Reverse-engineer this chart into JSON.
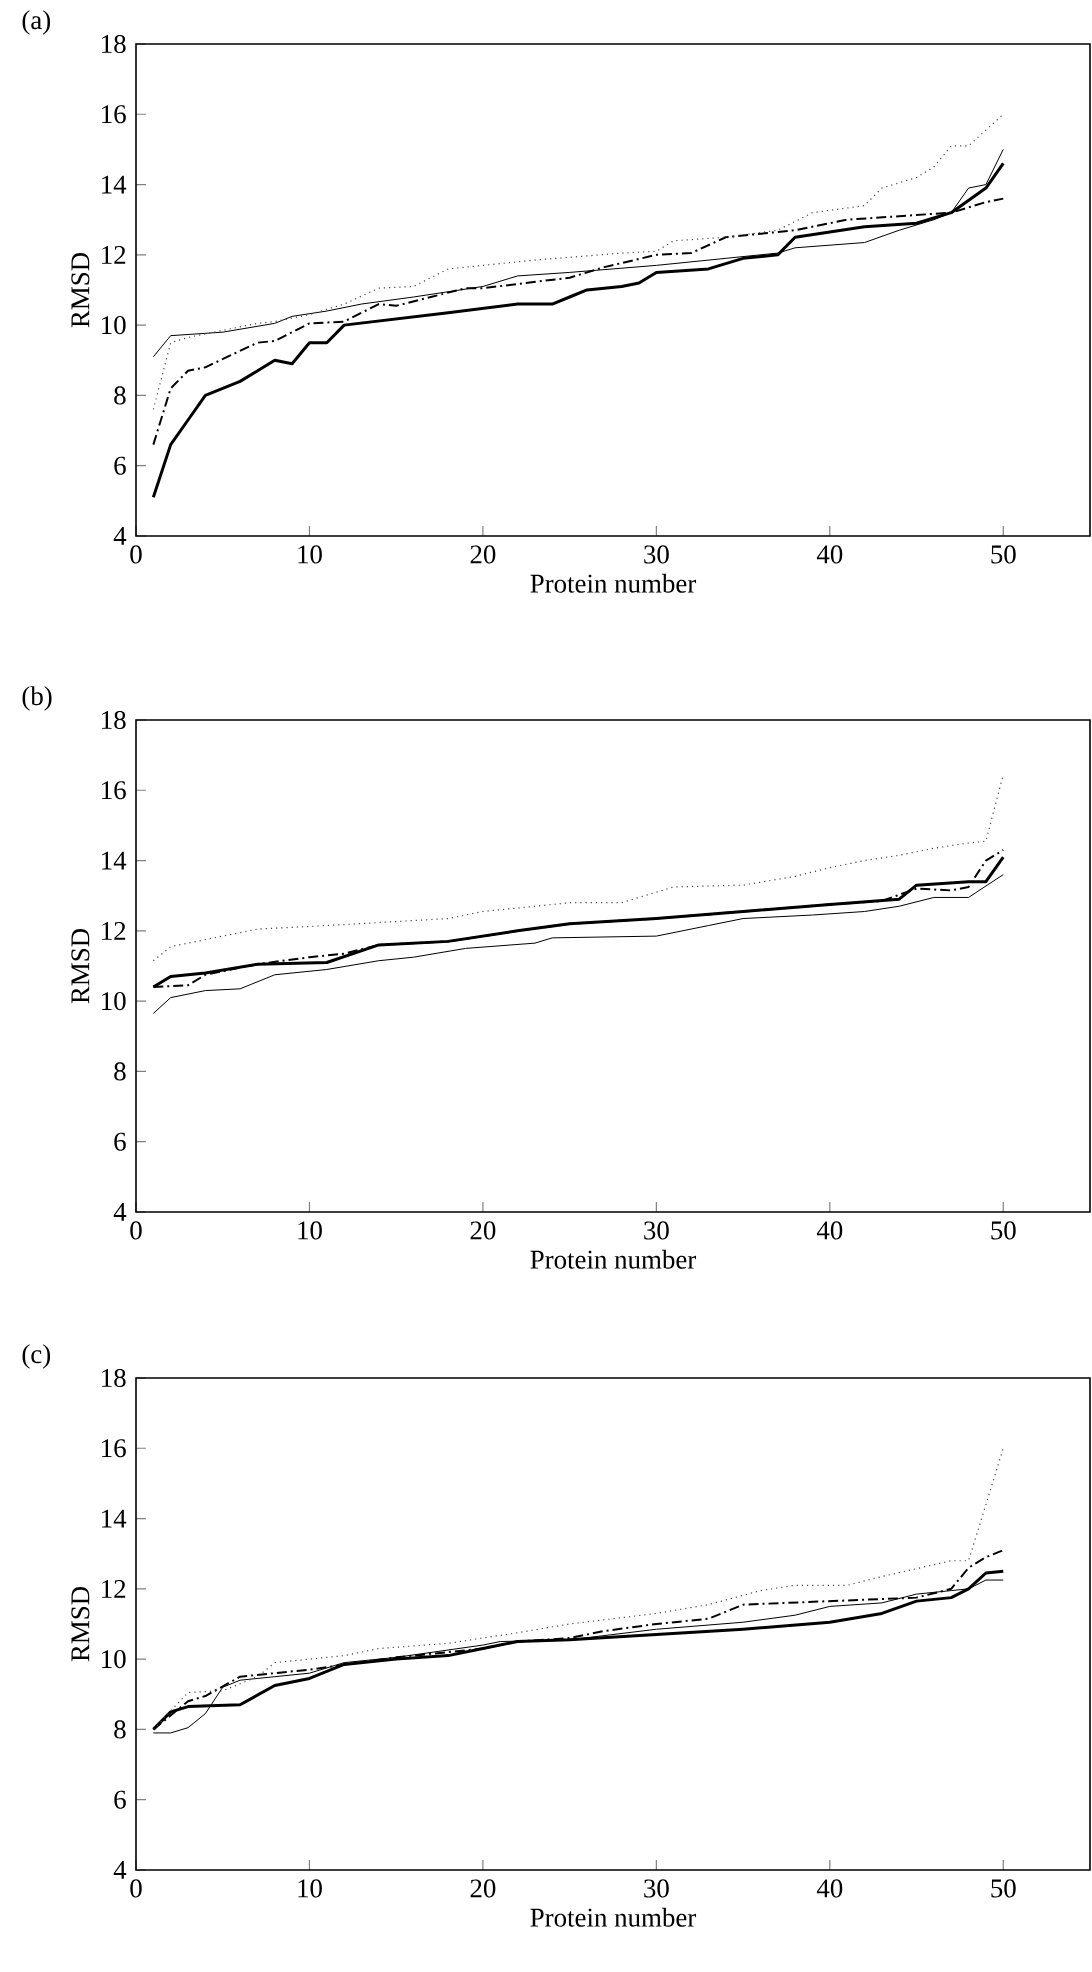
{
  "chart_data": [
    {
      "type": "line",
      "title": "(a)",
      "xlabel": "Protein number",
      "ylabel": "RMSD",
      "xlim": [
        0,
        55
      ],
      "ylim": [
        4,
        18
      ],
      "xticks": [
        0,
        10,
        20,
        30,
        40,
        50
      ],
      "yticks": [
        4,
        6,
        8,
        10,
        12,
        14,
        16,
        18
      ],
      "series": [
        {
          "color": "#000000",
          "line_style": "solid",
          "x": [
            1,
            2,
            3,
            4,
            6,
            8,
            9,
            10,
            11,
            12,
            18,
            22,
            24,
            25,
            26,
            28,
            29,
            30,
            33,
            35,
            37,
            38,
            42,
            45,
            47,
            49,
            50
          ],
          "values": [
            5.1,
            6.6,
            7.3,
            8.0,
            8.4,
            9.0,
            8.9,
            9.5,
            9.5,
            10.0,
            10.35,
            10.6,
            10.6,
            10.8,
            11.0,
            11.1,
            11.2,
            11.5,
            11.6,
            11.9,
            12.0,
            12.5,
            12.8,
            12.9,
            13.2,
            13.9,
            14.6
          ]
        },
        {
          "color": "#000000",
          "line_style": "solid",
          "x": [
            1,
            2,
            5,
            8,
            9,
            11,
            13,
            16,
            20,
            22,
            25,
            30,
            37,
            38,
            42,
            44,
            46,
            47,
            48,
            49,
            50
          ],
          "values": [
            9.1,
            9.7,
            9.8,
            10.05,
            10.25,
            10.4,
            10.6,
            10.8,
            11.1,
            11.4,
            11.5,
            11.7,
            12.05,
            12.2,
            12.35,
            12.7,
            13.0,
            13.2,
            13.9,
            14.0,
            15.0
          ]
        },
        {
          "color": "#000000",
          "line_style": "dashed",
          "x": [
            1,
            2,
            3,
            4,
            7,
            8,
            10,
            12,
            14,
            15,
            17,
            19,
            20,
            25,
            27,
            30,
            32,
            34,
            38,
            41,
            44,
            47,
            49,
            50
          ],
          "values": [
            6.6,
            8.2,
            8.7,
            8.8,
            9.5,
            9.55,
            10.05,
            10.1,
            10.6,
            10.55,
            10.8,
            11.05,
            11.05,
            11.35,
            11.65,
            12.0,
            12.05,
            12.5,
            12.7,
            13.0,
            13.1,
            13.2,
            13.5,
            13.6
          ]
        },
        {
          "color": "#444444",
          "line_style": "dotted",
          "x": [
            1,
            2,
            3,
            7,
            8,
            10,
            12,
            14,
            16,
            18,
            20,
            23,
            28,
            30,
            31,
            34,
            37,
            39,
            42,
            43,
            45,
            46,
            47,
            48,
            50
          ],
          "values": [
            7.6,
            9.5,
            9.65,
            10.05,
            10.1,
            10.3,
            10.6,
            11.05,
            11.1,
            11.6,
            11.7,
            11.85,
            12.05,
            12.1,
            12.4,
            12.5,
            12.7,
            13.2,
            13.4,
            13.9,
            14.2,
            14.5,
            15.1,
            15.1,
            16.0
          ]
        }
      ]
    },
    {
      "type": "line",
      "title": "(b)",
      "xlabel": "Protein number",
      "ylabel": "RMSD",
      "xlim": [
        0,
        55
      ],
      "ylim": [
        4,
        18
      ],
      "xticks": [
        0,
        10,
        20,
        30,
        40,
        50
      ],
      "yticks": [
        4,
        6,
        8,
        10,
        12,
        14,
        16,
        18
      ],
      "series": [
        {
          "color": "#000000",
          "line_style": "solid",
          "x": [
            1,
            2,
            4,
            7,
            11,
            14,
            18,
            22,
            25,
            30,
            35,
            40,
            44,
            45,
            48,
            49,
            50
          ],
          "values": [
            10.4,
            10.7,
            10.8,
            11.05,
            11.1,
            11.6,
            11.7,
            12.0,
            12.2,
            12.35,
            12.55,
            12.75,
            12.9,
            13.3,
            13.4,
            13.4,
            14.1
          ]
        },
        {
          "color": "#000000",
          "line_style": "solid",
          "x": [
            1,
            2,
            4,
            6,
            8,
            11,
            14,
            16,
            19,
            23,
            24,
            30,
            33,
            35,
            39,
            42,
            44,
            46,
            48,
            50
          ],
          "values": [
            9.65,
            10.1,
            10.3,
            10.35,
            10.75,
            10.9,
            11.15,
            11.25,
            11.5,
            11.65,
            11.8,
            11.85,
            12.15,
            12.35,
            12.45,
            12.55,
            12.7,
            12.95,
            12.95,
            13.6
          ]
        },
        {
          "color": "#000000",
          "line_style": "dashed",
          "x": [
            1,
            3,
            4,
            7,
            10,
            12,
            14,
            18,
            22,
            25,
            30,
            35,
            40,
            43,
            45,
            47,
            48,
            49,
            50
          ],
          "values": [
            10.4,
            10.45,
            10.75,
            11.05,
            11.25,
            11.35,
            11.6,
            11.7,
            12.0,
            12.2,
            12.35,
            12.55,
            12.75,
            12.85,
            13.2,
            13.15,
            13.25,
            14.0,
            14.3
          ]
        },
        {
          "color": "#444444",
          "line_style": "dotted",
          "x": [
            1,
            2,
            5,
            7,
            11,
            18,
            20,
            25,
            28,
            29,
            31,
            35,
            38,
            40,
            42,
            44,
            46,
            48,
            49,
            50
          ],
          "values": [
            11.15,
            11.55,
            11.85,
            12.05,
            12.15,
            12.35,
            12.55,
            12.8,
            12.8,
            12.95,
            13.25,
            13.3,
            13.55,
            13.8,
            14.0,
            14.15,
            14.35,
            14.5,
            14.55,
            16.45
          ]
        }
      ]
    },
    {
      "type": "line",
      "title": "(c)",
      "xlabel": "Protein number",
      "ylabel": "RMSD",
      "xlim": [
        0,
        55
      ],
      "ylim": [
        4,
        18
      ],
      "xticks": [
        0,
        10,
        20,
        30,
        40,
        50
      ],
      "yticks": [
        4,
        6,
        8,
        10,
        12,
        14,
        16,
        18
      ],
      "series": [
        {
          "color": "#000000",
          "line_style": "solid",
          "x": [
            1,
            2,
            3,
            6,
            8,
            10,
            12,
            15,
            18,
            20,
            22,
            25,
            30,
            35,
            40,
            43,
            45,
            47,
            48,
            49,
            50
          ],
          "values": [
            8.0,
            8.5,
            8.65,
            8.7,
            9.25,
            9.45,
            9.85,
            10.0,
            10.1,
            10.3,
            10.5,
            10.55,
            10.7,
            10.85,
            11.05,
            11.3,
            11.65,
            11.75,
            12.0,
            12.45,
            12.5
          ]
        },
        {
          "color": "#000000",
          "line_style": "solid",
          "x": [
            1,
            2,
            3,
            4,
            5,
            6,
            8,
            10,
            12,
            15,
            20,
            21,
            25,
            30,
            35,
            38,
            40,
            43,
            45,
            47,
            48,
            49,
            50
          ],
          "values": [
            7.9,
            7.9,
            8.05,
            8.45,
            9.2,
            9.4,
            9.5,
            9.6,
            9.9,
            10.05,
            10.4,
            10.5,
            10.55,
            10.85,
            11.05,
            11.25,
            11.5,
            11.6,
            11.85,
            11.95,
            12.0,
            12.25,
            12.25
          ]
        },
        {
          "color": "#000000",
          "line_style": "dashed",
          "x": [
            1,
            3,
            4,
            6,
            8,
            10,
            15,
            20,
            22,
            25,
            27,
            30,
            33,
            35,
            40,
            45,
            47,
            48,
            49,
            50
          ],
          "values": [
            8.0,
            8.8,
            8.95,
            9.5,
            9.6,
            9.7,
            10.05,
            10.3,
            10.5,
            10.6,
            10.8,
            11.0,
            11.15,
            11.55,
            11.65,
            11.75,
            12.0,
            12.6,
            12.9,
            13.1
          ]
        },
        {
          "color": "#444444",
          "line_style": "dotted",
          "x": [
            1,
            3,
            5,
            7,
            8,
            12,
            14,
            18,
            20,
            22,
            25,
            30,
            33,
            36,
            38,
            41,
            43,
            47,
            48,
            50
          ],
          "values": [
            8.0,
            9.05,
            9.1,
            9.5,
            9.9,
            10.1,
            10.3,
            10.45,
            10.6,
            10.75,
            11.0,
            11.3,
            11.55,
            11.95,
            12.1,
            12.1,
            12.35,
            12.8,
            12.8,
            16.0
          ]
        }
      ]
    }
  ]
}
